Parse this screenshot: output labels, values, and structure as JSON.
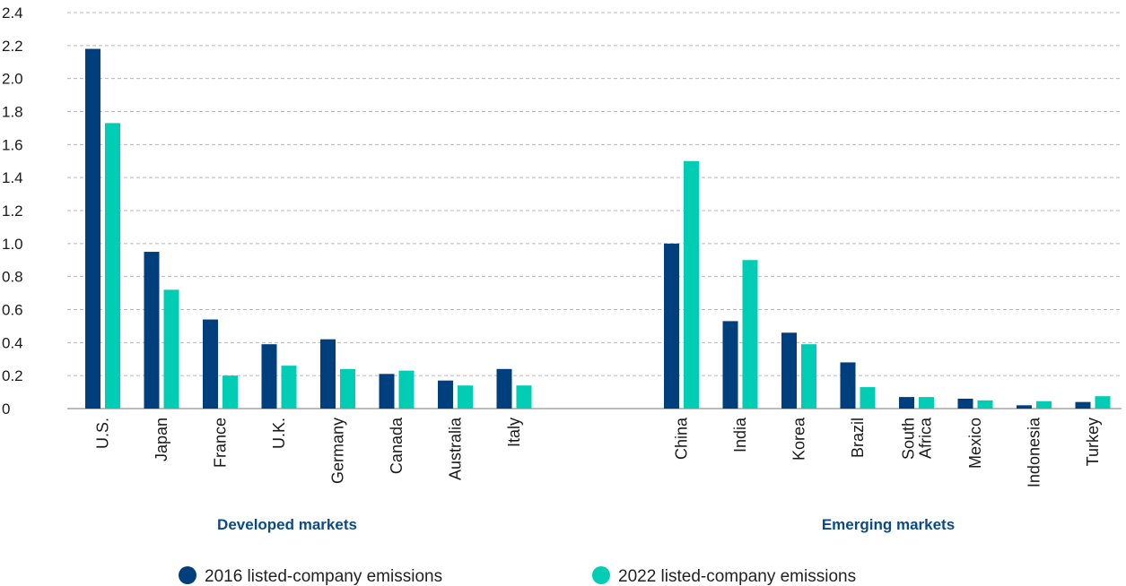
{
  "chart_data": {
    "type": "bar",
    "title": "",
    "xlabel": "",
    "ylabel": "",
    "ylim": [
      0,
      2.4
    ],
    "yticks": [
      "0",
      "0.2",
      "0.4",
      "0.6",
      "0.8",
      "1.0",
      "1.2",
      "1.4",
      "1.6",
      "1.8",
      "2.0",
      "2.2",
      "2.4"
    ],
    "grid": true,
    "legend_position": "bottom",
    "groups": [
      {
        "label": "Developed markets",
        "categories": [
          "U.S.",
          "Japan",
          "France",
          "U.K.",
          "Germany",
          "Canada",
          "Australia",
          "Italy"
        ]
      },
      {
        "label": "Emerging markets",
        "categories": [
          "China",
          "India",
          "Korea",
          "Brazil",
          "South Africa",
          "Mexico",
          "Indonesia",
          "Turkey"
        ]
      }
    ],
    "categories": [
      "U.S.",
      "Japan",
      "France",
      "U.K.",
      "Germany",
      "Canada",
      "Australia",
      "Italy",
      "China",
      "India",
      "Korea",
      "Brazil",
      "South Africa",
      "Mexico",
      "Indonesia",
      "Turkey"
    ],
    "series": [
      {
        "name": "2016 listed-company emissions",
        "color": "#003f7d",
        "values": [
          2.18,
          0.95,
          0.54,
          0.39,
          0.42,
          0.21,
          0.17,
          0.24,
          1.0,
          0.53,
          0.46,
          0.28,
          0.07,
          0.06,
          0.02,
          0.04
        ]
      },
      {
        "name": "2022 listed-company emissions",
        "color": "#00cdb4",
        "values": [
          1.73,
          0.72,
          0.2,
          0.26,
          0.24,
          0.23,
          0.14,
          0.14,
          1.5,
          0.9,
          0.39,
          0.13,
          0.07,
          0.05,
          0.045,
          0.075
        ]
      }
    ]
  }
}
